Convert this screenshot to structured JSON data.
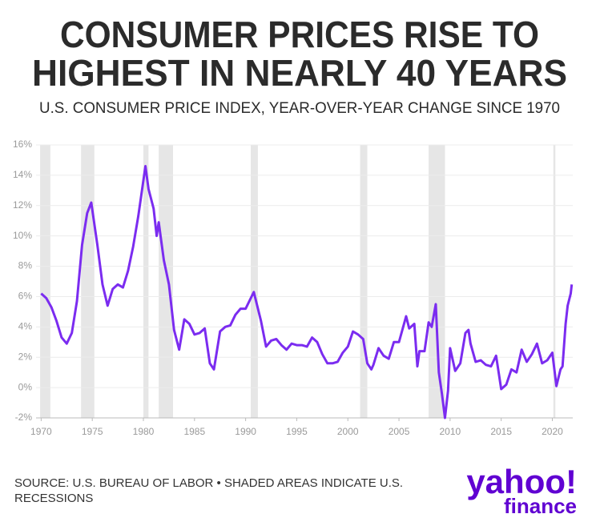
{
  "chart_data": {
    "type": "line",
    "title": [
      "CONSUMER PRICES RISE TO",
      "HIGHEST IN NEARLY 40 YEARS"
    ],
    "subtitle": "U.S. CONSUMER PRICE INDEX, YEAR-OVER-YEAR CHANGE SINCE 1970",
    "source": [
      "SOURCE: U.S. BUREAU OF LABOR • SHADED AREAS INDICATE U.S.",
      "RECESSIONS"
    ],
    "logo": {
      "brand": "yahoo!",
      "product": "finance"
    },
    "color": "#7b2cf0",
    "recession_color": "#e6e6e6",
    "grid": true,
    "xlim": [
      1969.5,
      2022
    ],
    "ylim": [
      -2,
      16
    ],
    "xticks": [
      1970,
      1975,
      1980,
      1985,
      1990,
      1995,
      2000,
      2005,
      2010,
      2015,
      2020
    ],
    "yticks": [
      {
        "value": -2,
        "label": "-2%"
      },
      {
        "value": 0,
        "label": "0%"
      },
      {
        "value": 2,
        "label": "2%"
      },
      {
        "value": 4,
        "label": "4%"
      },
      {
        "value": 6,
        "label": "6%"
      },
      {
        "value": 8,
        "label": "8%"
      },
      {
        "value": 10,
        "label": "10%"
      },
      {
        "value": 12,
        "label": "12%"
      },
      {
        "value": 14,
        "label": "14%"
      },
      {
        "value": 16,
        "label": "16%"
      }
    ],
    "recessions": [
      [
        1969.9,
        1970.9
      ],
      [
        1973.9,
        1975.2
      ],
      [
        1980.0,
        1980.5
      ],
      [
        1981.5,
        1982.9
      ],
      [
        1990.5,
        1991.2
      ],
      [
        2001.2,
        2001.9
      ],
      [
        2007.9,
        2009.5
      ],
      [
        2020.1,
        2020.3
      ]
    ],
    "x": [
      1970.0,
      1970.5,
      1971.0,
      1971.5,
      1972.0,
      1972.5,
      1973.0,
      1973.5,
      1974.0,
      1974.5,
      1974.9,
      1975.5,
      1976.0,
      1976.5,
      1977.0,
      1977.5,
      1978.0,
      1978.5,
      1979.0,
      1979.5,
      1980.2,
      1980.5,
      1981.0,
      1981.3,
      1981.5,
      1982.0,
      1982.5,
      1983.0,
      1983.5,
      1984.0,
      1984.5,
      1985.0,
      1985.5,
      1986.0,
      1986.5,
      1986.9,
      1987.5,
      1988.0,
      1988.5,
      1989.0,
      1989.5,
      1990.0,
      1990.8,
      1991.5,
      1992.0,
      1992.5,
      1993.0,
      1993.5,
      1994.0,
      1994.5,
      1995.0,
      1995.5,
      1996.0,
      1996.5,
      1997.0,
      1997.5,
      1998.0,
      1998.5,
      1999.0,
      1999.5,
      2000.0,
      2000.5,
      2001.0,
      2001.5,
      2001.9,
      2002.3,
      2002.5,
      2003.0,
      2003.5,
      2004.0,
      2004.5,
      2005.0,
      2005.7,
      2006.0,
      2006.5,
      2006.8,
      2007.0,
      2007.5,
      2007.9,
      2008.2,
      2008.6,
      2008.9,
      2009.2,
      2009.5,
      2009.8,
      2010.0,
      2010.5,
      2011.0,
      2011.5,
      2011.8,
      2012.0,
      2012.5,
      2013.0,
      2013.5,
      2014.0,
      2014.5,
      2015.0,
      2015.5,
      2016.0,
      2016.5,
      2017.0,
      2017.5,
      2018.0,
      2018.5,
      2019.0,
      2019.5,
      2020.0,
      2020.4,
      2020.8,
      2021.0,
      2021.3,
      2021.5,
      2021.8,
      2021.9
    ],
    "values": [
      6.2,
      5.9,
      5.3,
      4.4,
      3.3,
      2.9,
      3.6,
      5.7,
      9.4,
      11.5,
      12.2,
      9.4,
      6.8,
      5.4,
      6.5,
      6.8,
      6.6,
      7.7,
      9.3,
      11.3,
      14.6,
      13.1,
      11.8,
      10.0,
      10.9,
      8.4,
      6.8,
      3.8,
      2.5,
      4.5,
      4.2,
      3.5,
      3.6,
      3.9,
      1.6,
      1.2,
      3.7,
      4.0,
      4.1,
      4.8,
      5.2,
      5.2,
      6.3,
      4.4,
      2.7,
      3.1,
      3.2,
      2.8,
      2.5,
      2.9,
      2.8,
      2.8,
      2.7,
      3.3,
      3.0,
      2.2,
      1.6,
      1.6,
      1.7,
      2.3,
      2.7,
      3.7,
      3.5,
      3.2,
      1.6,
      1.2,
      1.5,
      2.6,
      2.1,
      1.9,
      3.0,
      3.0,
      4.7,
      3.9,
      4.2,
      1.4,
      2.4,
      2.4,
      4.3,
      4.0,
      5.5,
      1.0,
      -0.4,
      -2.0,
      -0.2,
      2.6,
      1.1,
      1.6,
      3.6,
      3.8,
      2.9,
      1.7,
      1.8,
      1.5,
      1.4,
      2.1,
      -0.1,
      0.2,
      1.2,
      1.0,
      2.5,
      1.7,
      2.2,
      2.9,
      1.6,
      1.8,
      2.3,
      0.1,
      1.2,
      1.4,
      4.2,
      5.4,
      6.2,
      6.8
    ]
  }
}
